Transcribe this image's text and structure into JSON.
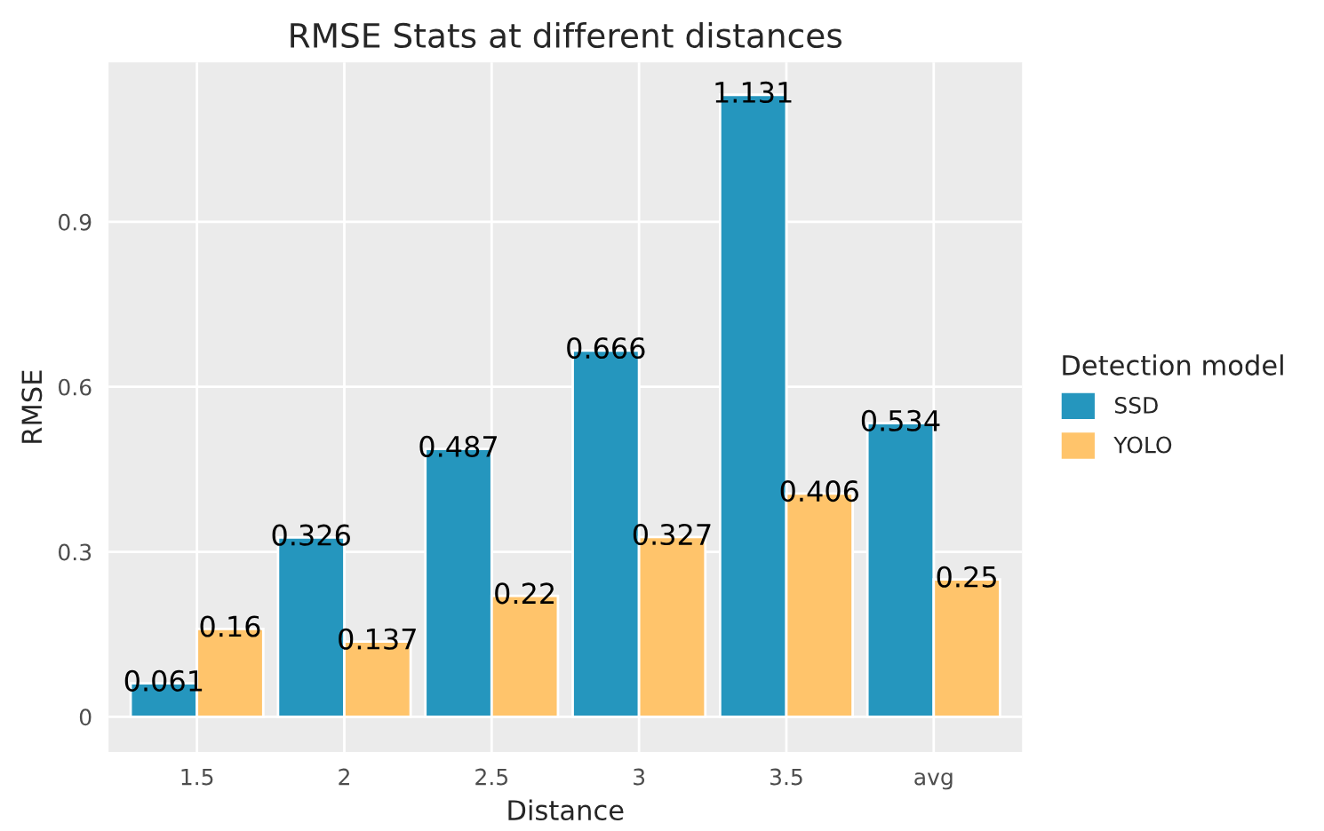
{
  "chart_data": {
    "type": "bar",
    "title": "RMSE Stats at different distances",
    "xlabel": "Distance",
    "ylabel": "RMSE",
    "legend_title": "Detection model",
    "categories": [
      "1.5",
      "2",
      "2.5",
      "3",
      "3.5",
      "avg"
    ],
    "series": [
      {
        "name": "SSD",
        "color": "#2596be",
        "values": [
          0.061,
          0.326,
          0.487,
          0.666,
          1.131,
          0.534
        ]
      },
      {
        "name": "YOLO",
        "color": "#ffc46b",
        "values": [
          0.16,
          0.137,
          0.22,
          0.327,
          0.406,
          0.25
        ]
      }
    ],
    "ylim": [
      -0.064,
      1.19
    ],
    "yticks": [
      0,
      0.3,
      0.6,
      0.9
    ],
    "grid": true,
    "legend": "right",
    "data_labels": true
  }
}
